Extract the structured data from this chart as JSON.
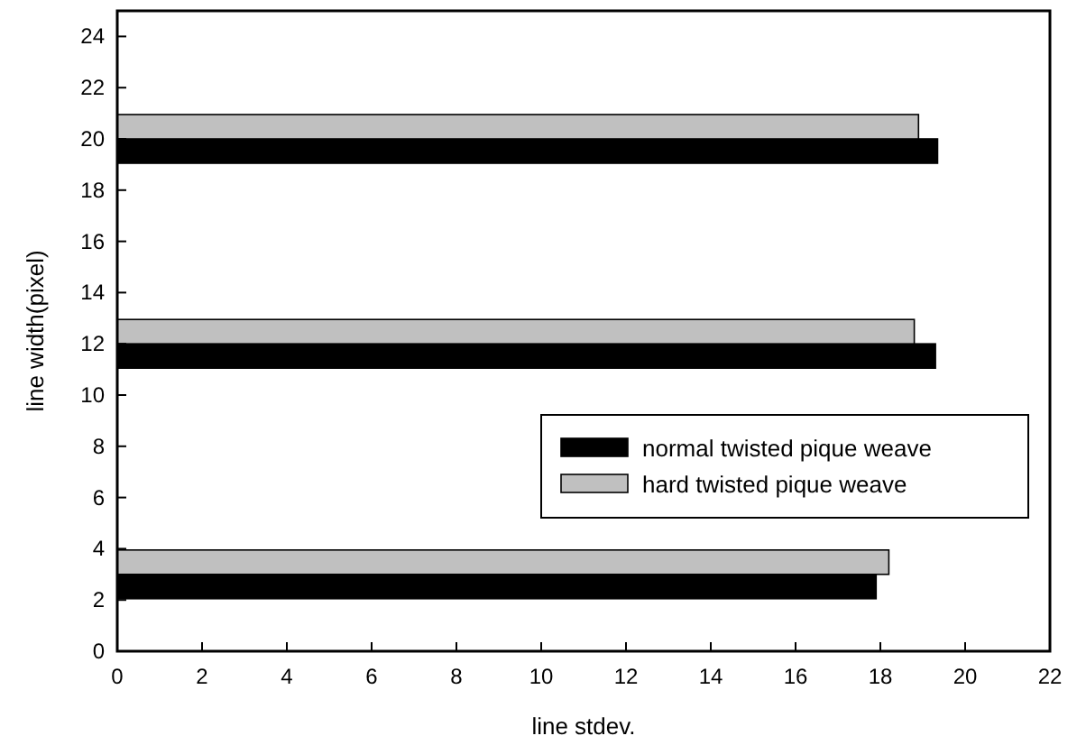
{
  "chart_data": {
    "type": "bar",
    "orientation": "horizontal",
    "xlabel": "line stdev.",
    "ylabel": "line width(pixel)",
    "x": [
      3,
      12,
      20
    ],
    "series": [
      {
        "name": "normal twisted pique weave",
        "color": "#000000",
        "values": [
          17.9,
          19.3,
          19.35
        ]
      },
      {
        "name": "hard twisted pique weave",
        "color": "#c0c0c0",
        "values": [
          18.2,
          18.8,
          18.9
        ]
      }
    ],
    "xlim": [
      0,
      22
    ],
    "xticks": [
      0,
      2,
      4,
      6,
      8,
      10,
      12,
      14,
      16,
      18,
      20,
      22
    ],
    "ylim": [
      0,
      25
    ],
    "yticks": [
      0,
      2,
      4,
      6,
      8,
      10,
      12,
      14,
      16,
      18,
      20,
      22,
      24
    ],
    "legend": "right"
  }
}
